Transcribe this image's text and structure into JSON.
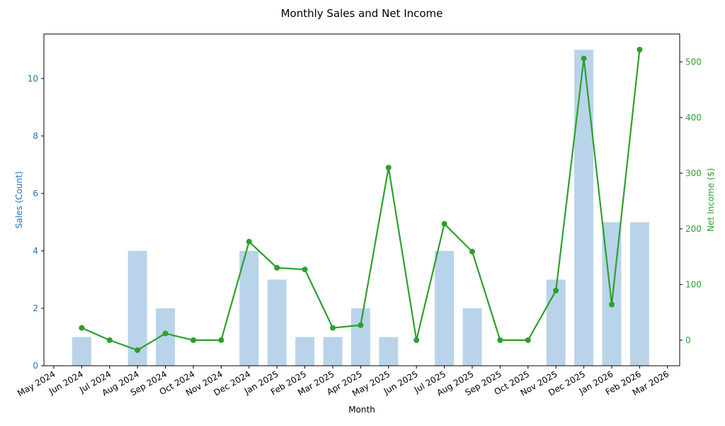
{
  "chart_data": {
    "type": "bar+line",
    "title": "Monthly Sales and Net Income",
    "xlabel": "Month",
    "ylabel_left": "Sales (Count)",
    "ylabel_right": "Net Income ($)",
    "x_ticks": [
      "May 2024",
      "Jun 2024",
      "Jul 2024",
      "Aug 2024",
      "Sep 2024",
      "Oct 2024",
      "Nov 2024",
      "Dec 2024",
      "Jan 2025",
      "Feb 2025",
      "Mar 2025",
      "Apr 2025",
      "May 2025",
      "Jun 2025",
      "Jul 2025",
      "Aug 2025",
      "Sep 2025",
      "Oct 2025",
      "Nov 2025",
      "Dec 2025",
      "Jan 2026",
      "Feb 2026",
      "Mar 2026"
    ],
    "categories": [
      "Jun 2024",
      "Jul 2024",
      "Aug 2024",
      "Sep 2024",
      "Oct 2024",
      "Nov 2024",
      "Dec 2024",
      "Jan 2025",
      "Feb 2025",
      "Mar 2025",
      "Apr 2025",
      "May 2025",
      "Jun 2025",
      "Jul 2025",
      "Aug 2025",
      "Sep 2025",
      "Oct 2025",
      "Nov 2025",
      "Dec 2025",
      "Jan 2026",
      "Feb 2026"
    ],
    "series": [
      {
        "type": "bar",
        "axis": "left",
        "color": "#b9d4ea",
        "values": [
          1,
          0,
          4,
          2,
          0,
          0,
          4,
          3,
          1,
          1,
          2,
          1,
          0,
          4,
          2,
          0,
          0,
          3,
          11,
          5,
          5
        ]
      },
      {
        "type": "line",
        "axis": "right",
        "color": "#2ca02c",
        "values": [
          22,
          0,
          -18,
          12,
          0,
          0,
          177,
          130,
          127,
          22,
          27,
          310,
          0,
          209,
          159,
          0,
          0,
          89,
          506,
          64,
          522
        ]
      }
    ],
    "ylim_left": [
      0,
      11.55
    ],
    "yticks_left": [
      0,
      2,
      4,
      6,
      8,
      10
    ],
    "ylim_right": [
      -46,
      550
    ],
    "yticks_right": [
      0,
      100,
      200,
      300,
      400,
      500
    ],
    "left_axis_color": "#1f77b4",
    "right_axis_color": "#2ca02c",
    "grid": false
  }
}
